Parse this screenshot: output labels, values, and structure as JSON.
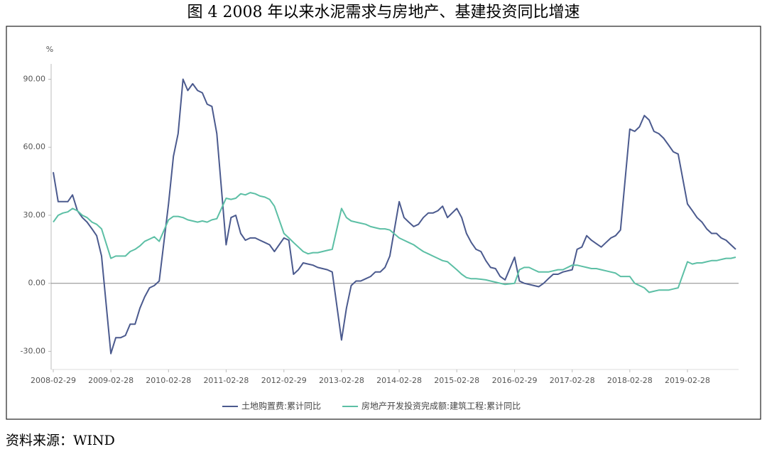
{
  "chart_data": {
    "type": "line",
    "title": "图 4    2008 年以来水泥需求与房地产、基建投资同比增速",
    "source": "资料来源：WIND",
    "ylabel": "%",
    "ylim": [
      -38,
      103
    ],
    "yticks": [
      {
        "value": -30,
        "label": "-30.00"
      },
      {
        "value": 0,
        "label": "0.00"
      },
      {
        "value": 30,
        "label": "30.00"
      },
      {
        "value": 60,
        "label": "60.00"
      },
      {
        "value": 90,
        "label": "90.00"
      }
    ],
    "xlim": [
      "2008-02-29",
      "2019-12-31"
    ],
    "xticks": [
      "2008-02-29",
      "2009-02-28",
      "2010-02-28",
      "2011-02-28",
      "2012-02-29",
      "2013-02-28",
      "2014-02-28",
      "2015-02-28",
      "2016-02-29",
      "2017-02-28",
      "2018-02-28",
      "2019-02-28"
    ],
    "x": [
      "2008-02-29",
      "2008-03-31",
      "2008-04-30",
      "2008-05-31",
      "2008-06-30",
      "2008-07-31",
      "2008-08-31",
      "2008-09-30",
      "2008-10-31",
      "2008-11-30",
      "2008-12-31",
      "2009-02-28",
      "2009-03-31",
      "2009-04-30",
      "2009-05-31",
      "2009-06-30",
      "2009-07-31",
      "2009-08-31",
      "2009-09-30",
      "2009-10-31",
      "2009-11-30",
      "2009-12-31",
      "2010-02-28",
      "2010-03-31",
      "2010-04-30",
      "2010-05-31",
      "2010-06-30",
      "2010-07-31",
      "2010-08-31",
      "2010-09-30",
      "2010-10-31",
      "2010-11-30",
      "2010-12-31",
      "2011-02-28",
      "2011-03-31",
      "2011-04-30",
      "2011-05-31",
      "2011-06-30",
      "2011-07-31",
      "2011-08-31",
      "2011-09-30",
      "2011-10-31",
      "2011-11-30",
      "2011-12-31",
      "2012-02-29",
      "2012-03-31",
      "2012-04-30",
      "2012-05-31",
      "2012-06-30",
      "2012-07-31",
      "2012-08-31",
      "2012-09-30",
      "2012-10-31",
      "2012-11-30",
      "2012-12-31",
      "2013-02-28",
      "2013-03-31",
      "2013-04-30",
      "2013-05-31",
      "2013-06-30",
      "2013-07-31",
      "2013-08-31",
      "2013-09-30",
      "2013-10-31",
      "2013-11-30",
      "2013-12-31",
      "2014-02-28",
      "2014-03-31",
      "2014-04-30",
      "2014-05-31",
      "2014-06-30",
      "2014-07-31",
      "2014-08-31",
      "2014-09-30",
      "2014-10-31",
      "2014-11-30",
      "2014-12-31",
      "2015-02-28",
      "2015-03-31",
      "2015-04-30",
      "2015-05-31",
      "2015-06-30",
      "2015-07-31",
      "2015-08-31",
      "2015-09-30",
      "2015-10-31",
      "2015-11-30",
      "2015-12-31",
      "2016-02-29",
      "2016-03-31",
      "2016-04-30",
      "2016-05-31",
      "2016-06-30",
      "2016-07-31",
      "2016-08-31",
      "2016-09-30",
      "2016-10-31",
      "2016-11-30",
      "2016-12-31",
      "2017-02-28",
      "2017-03-31",
      "2017-04-30",
      "2017-05-31",
      "2017-06-30",
      "2017-07-31",
      "2017-08-31",
      "2017-09-30",
      "2017-10-31",
      "2017-11-30",
      "2017-12-31",
      "2018-02-28",
      "2018-03-31",
      "2018-04-30",
      "2018-05-31",
      "2018-06-30",
      "2018-07-31",
      "2018-08-31",
      "2018-09-30",
      "2018-10-31",
      "2018-11-30",
      "2018-12-31",
      "2019-02-28",
      "2019-03-31",
      "2019-04-30",
      "2019-05-31",
      "2019-06-30",
      "2019-07-31",
      "2019-08-31",
      "2019-09-30",
      "2019-10-31",
      "2019-11-30",
      "2019-12-31"
    ],
    "series": [
      {
        "name": "土地购置费:累计同比",
        "color": "#4b5a8e",
        "values": [
          49,
          36,
          36,
          36,
          39,
          32,
          29,
          27,
          24,
          21,
          12,
          -31,
          -24,
          -24,
          -23,
          -18,
          -18,
          -11,
          -6,
          -2,
          -1,
          1,
          35,
          56,
          66,
          90,
          85,
          88,
          85,
          84,
          79,
          78,
          66,
          17,
          29,
          30,
          22,
          19,
          20,
          20,
          19,
          18,
          17,
          14,
          20,
          19,
          4,
          6,
          9,
          8.5,
          8,
          7,
          6.5,
          6,
          5,
          -25,
          -11,
          -1,
          1,
          1,
          2,
          3,
          5,
          5,
          7,
          12,
          36,
          29,
          27,
          25,
          26,
          29,
          31,
          31,
          32,
          34,
          29,
          33,
          29,
          22,
          18,
          15,
          14,
          10,
          7,
          6.5,
          3,
          1.5,
          11.5,
          1,
          0,
          -0.5,
          -1,
          -1.5,
          0,
          2,
          4,
          4,
          5,
          6,
          15,
          16,
          21,
          19,
          17.5,
          16,
          18,
          20,
          21,
          23.5,
          68,
          67,
          69,
          74,
          72,
          67,
          66,
          64,
          61,
          58,
          57,
          35,
          32,
          29,
          27,
          24,
          22,
          22,
          20,
          19,
          17,
          15
        ]
      },
      {
        "name": "房地产开发投资完成额:建筑工程:累计同比",
        "color": "#5cbfa5",
        "values": [
          27,
          30,
          31,
          31.5,
          33,
          32,
          30,
          29,
          27,
          26,
          24,
          11,
          12,
          12,
          12,
          14,
          15,
          16.5,
          18.5,
          19.5,
          20.5,
          18.5,
          28,
          29.5,
          29.5,
          29,
          28,
          27.5,
          27,
          27.5,
          27,
          28,
          28.5,
          37.5,
          37,
          37.5,
          39.5,
          39,
          40,
          39.5,
          38.5,
          38,
          37,
          34,
          22,
          20,
          18,
          16,
          14,
          13,
          13.5,
          13.5,
          14,
          14.5,
          15,
          33,
          29,
          27.5,
          27,
          26.5,
          26,
          25,
          24.5,
          24,
          24,
          23.5,
          20,
          19,
          18,
          17,
          15.5,
          14,
          13,
          12,
          11,
          10,
          9.5,
          6,
          4,
          2.5,
          2,
          2,
          1.8,
          1.5,
          1,
          0.5,
          0,
          -0.5,
          0,
          6,
          7,
          7,
          6,
          5,
          5,
          5,
          5.5,
          6,
          6,
          8,
          8,
          7.5,
          7,
          6.5,
          6.5,
          6,
          5.5,
          5,
          4.5,
          3,
          3,
          0,
          -1,
          -2,
          -4,
          -3.5,
          -3,
          -3,
          -3,
          -2.5,
          -2,
          9.5,
          8.5,
          9,
          9,
          9.5,
          10,
          10,
          10.5,
          11,
          11,
          11.5
        ]
      }
    ]
  }
}
